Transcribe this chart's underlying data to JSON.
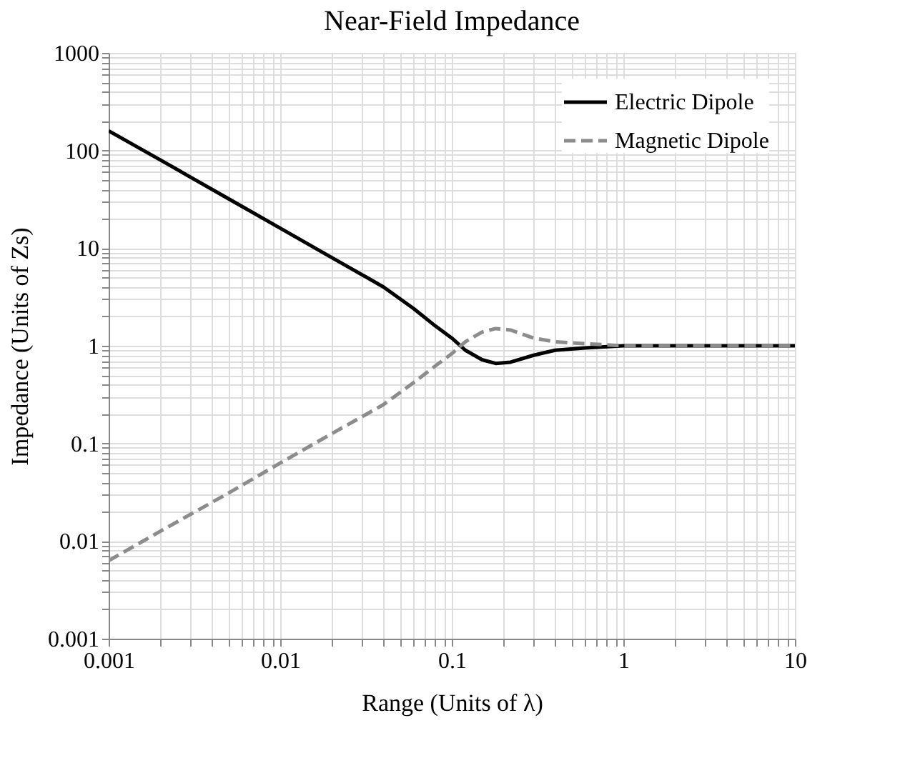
{
  "chart_data": {
    "type": "line",
    "title": "Near-Field Impedance",
    "xlabel": "Range (Units of λ)",
    "ylabel": "Impedance (Units of Zs)",
    "x": [
      0.001,
      0.002,
      0.005,
      0.01,
      0.02,
      0.04,
      0.06,
      0.08,
      0.1,
      0.12,
      0.15,
      0.18,
      0.22,
      0.3,
      0.4,
      0.6,
      1,
      2,
      5,
      10
    ],
    "series": [
      {
        "name": "Electric Dipole",
        "color": "#000000",
        "line_style": "solid",
        "values": [
          159,
          80,
          32,
          16,
          8,
          4,
          2.4,
          1.6,
          1.2,
          0.9,
          0.72,
          0.66,
          0.68,
          0.8,
          0.9,
          0.95,
          1,
          1,
          1,
          1
        ]
      },
      {
        "name": "Magnetic Dipole",
        "color": "#8c8c8c",
        "line_style": "dashed",
        "values": [
          0.0063,
          0.0126,
          0.031,
          0.063,
          0.126,
          0.25,
          0.42,
          0.62,
          0.83,
          1.1,
          1.38,
          1.5,
          1.45,
          1.2,
          1.1,
          1.05,
          1,
          1,
          1,
          1
        ]
      }
    ],
    "log": "xy",
    "grid": true,
    "legend": "top right",
    "xlim": [
      0.001,
      10
    ],
    "ylim": [
      0.001,
      1000
    ],
    "xticks": [
      0.001,
      {
        "value": 0.002,
        "label": null
      },
      {
        "value": 0.003,
        "label": null
      },
      {
        "value": 0.004,
        "label": null
      },
      {
        "value": 0.005,
        "label": null
      },
      {
        "value": 0.006,
        "label": null
      },
      {
        "value": 0.007,
        "label": null
      },
      {
        "value": 0.008,
        "label": null
      },
      {
        "value": 0.009,
        "label": null
      },
      0.01,
      {
        "value": 0.02,
        "label": null
      },
      {
        "value": 0.03,
        "label": null
      },
      {
        "value": 0.04,
        "label": null
      },
      {
        "value": 0.05,
        "label": null
      },
      {
        "value": 0.06,
        "label": null
      },
      {
        "value": 0.07,
        "label": null
      },
      {
        "value": 0.08,
        "label": null
      },
      {
        "value": 0.09,
        "label": null
      },
      0.1,
      {
        "value": 0.2,
        "label": null
      },
      {
        "value": 0.3,
        "label": null
      },
      {
        "value": 0.4,
        "label": null
      },
      {
        "value": 0.5,
        "label": null
      },
      {
        "value": 0.6,
        "label": null
      },
      {
        "value": 0.7,
        "label": null
      },
      {
        "value": 0.8,
        "label": null
      },
      {
        "value": 0.9,
        "label": null
      },
      1,
      {
        "value": 2,
        "label": null
      },
      {
        "value": 3,
        "label": null
      },
      {
        "value": 4,
        "label": null
      },
      {
        "value": 5,
        "label": null
      },
      {
        "value": 6,
        "label": null
      },
      {
        "value": 7,
        "label": null
      },
      {
        "value": 8,
        "label": null
      },
      {
        "value": 9,
        "label": null
      },
      10
    ],
    "yticks": [
      0.001,
      {
        "value": 0.002,
        "label": null
      },
      {
        "value": 0.003,
        "label": null
      },
      {
        "value": 0.004,
        "label": null
      },
      {
        "value": 0.005,
        "label": null
      },
      {
        "value": 0.006,
        "label": null
      },
      {
        "value": 0.007,
        "label": null
      },
      {
        "value": 0.008,
        "label": null
      },
      {
        "value": 0.009,
        "label": null
      },
      0.01,
      {
        "value": 0.02,
        "label": null
      },
      {
        "value": 0.03,
        "label": null
      },
      {
        "value": 0.04,
        "label": null
      },
      {
        "value": 0.05,
        "label": null
      },
      {
        "value": 0.06,
        "label": null
      },
      {
        "value": 0.07,
        "label": null
      },
      {
        "value": 0.08,
        "label": null
      },
      {
        "value": 0.09,
        "label": null
      },
      0.1,
      {
        "value": 0.2,
        "label": null
      },
      {
        "value": 0.3,
        "label": null
      },
      {
        "value": 0.4,
        "label": null
      },
      {
        "value": 0.5,
        "label": null
      },
      {
        "value": 0.6,
        "label": null
      },
      {
        "value": 0.7,
        "label": null
      },
      {
        "value": 0.8,
        "label": null
      },
      {
        "value": 0.9,
        "label": null
      },
      1,
      {
        "value": 2,
        "label": null
      },
      {
        "value": 3,
        "label": null
      },
      {
        "value": 4,
        "label": null
      },
      {
        "value": 5,
        "label": null
      },
      {
        "value": 6,
        "label": null
      },
      {
        "value": 7,
        "label": null
      },
      {
        "value": 8,
        "label": null
      },
      {
        "value": 9,
        "label": null
      },
      10,
      {
        "value": 20,
        "label": null
      },
      {
        "value": 30,
        "label": null
      },
      {
        "value": 40,
        "label": null
      },
      {
        "value": 50,
        "label": null
      },
      {
        "value": 60,
        "label": null
      },
      {
        "value": 70,
        "label": null
      },
      {
        "value": 80,
        "label": null
      },
      {
        "value": 90,
        "label": null
      },
      100,
      {
        "value": 200,
        "label": null
      },
      {
        "value": 300,
        "label": null
      },
      {
        "value": 400,
        "label": null
      },
      {
        "value": 500,
        "label": null
      },
      {
        "value": 600,
        "label": null
      },
      {
        "value": 700,
        "label": null
      },
      {
        "value": 800,
        "label": null
      },
      {
        "value": 900,
        "label": null
      },
      1000
    ]
  }
}
